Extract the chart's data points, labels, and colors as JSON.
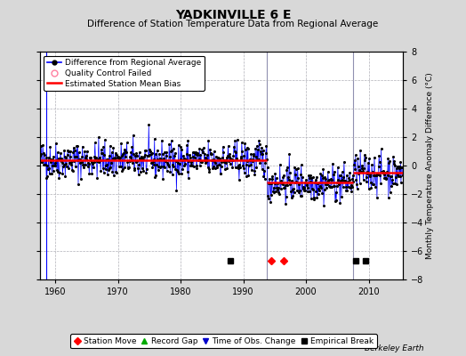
{
  "title": "YADKINVILLE 6 E",
  "subtitle": "Difference of Station Temperature Data from Regional Average",
  "ylabel": "Monthly Temperature Anomaly Difference (°C)",
  "xlim": [
    1957.5,
    2015.5
  ],
  "ylim": [
    -8,
    8
  ],
  "yticks": [
    -8,
    -6,
    -4,
    -2,
    0,
    2,
    4,
    6,
    8
  ],
  "xticks": [
    1960,
    1970,
    1980,
    1990,
    2000,
    2010
  ],
  "bg_color": "#d8d8d8",
  "plot_bg_color": "#ffffff",
  "grid_color": "#b0b0b8",
  "line_color": "#0000ff",
  "dot_color": "#000000",
  "bias_color": "#ff0000",
  "segment_biases": [
    {
      "start": 1957.5,
      "end": 1993.75,
      "bias": 0.38
    },
    {
      "start": 1993.75,
      "end": 2007.5,
      "bias": -1.2
    },
    {
      "start": 2007.5,
      "end": 2015.5,
      "bias": -0.5
    }
  ],
  "break_line_x1": 1993.75,
  "break_line_x2": 2007.5,
  "spike_x": 1958.5,
  "empirical_breaks": [
    1988.0,
    2008.0,
    2009.5
  ],
  "station_moves": [
    1994.5,
    1996.5
  ],
  "seed": 42,
  "noise_std": 0.65,
  "n_per_year": 12,
  "start_year": 1957.5,
  "end_year": 2015.5,
  "seg1_end_year": 1993.75,
  "seg2_end_year": 2007.5,
  "berkeley_earth_text": "Berkeley Earth",
  "legend1_labels": [
    "Difference from Regional Average",
    "Quality Control Failed",
    "Estimated Station Mean Bias"
  ],
  "legend2_labels": [
    "Station Move",
    "Record Gap",
    "Time of Obs. Change",
    "Empirical Break"
  ],
  "marker_y": -6.7,
  "title_fontsize": 10,
  "subtitle_fontsize": 7.5,
  "tick_fontsize": 7,
  "legend_fontsize": 6.5
}
